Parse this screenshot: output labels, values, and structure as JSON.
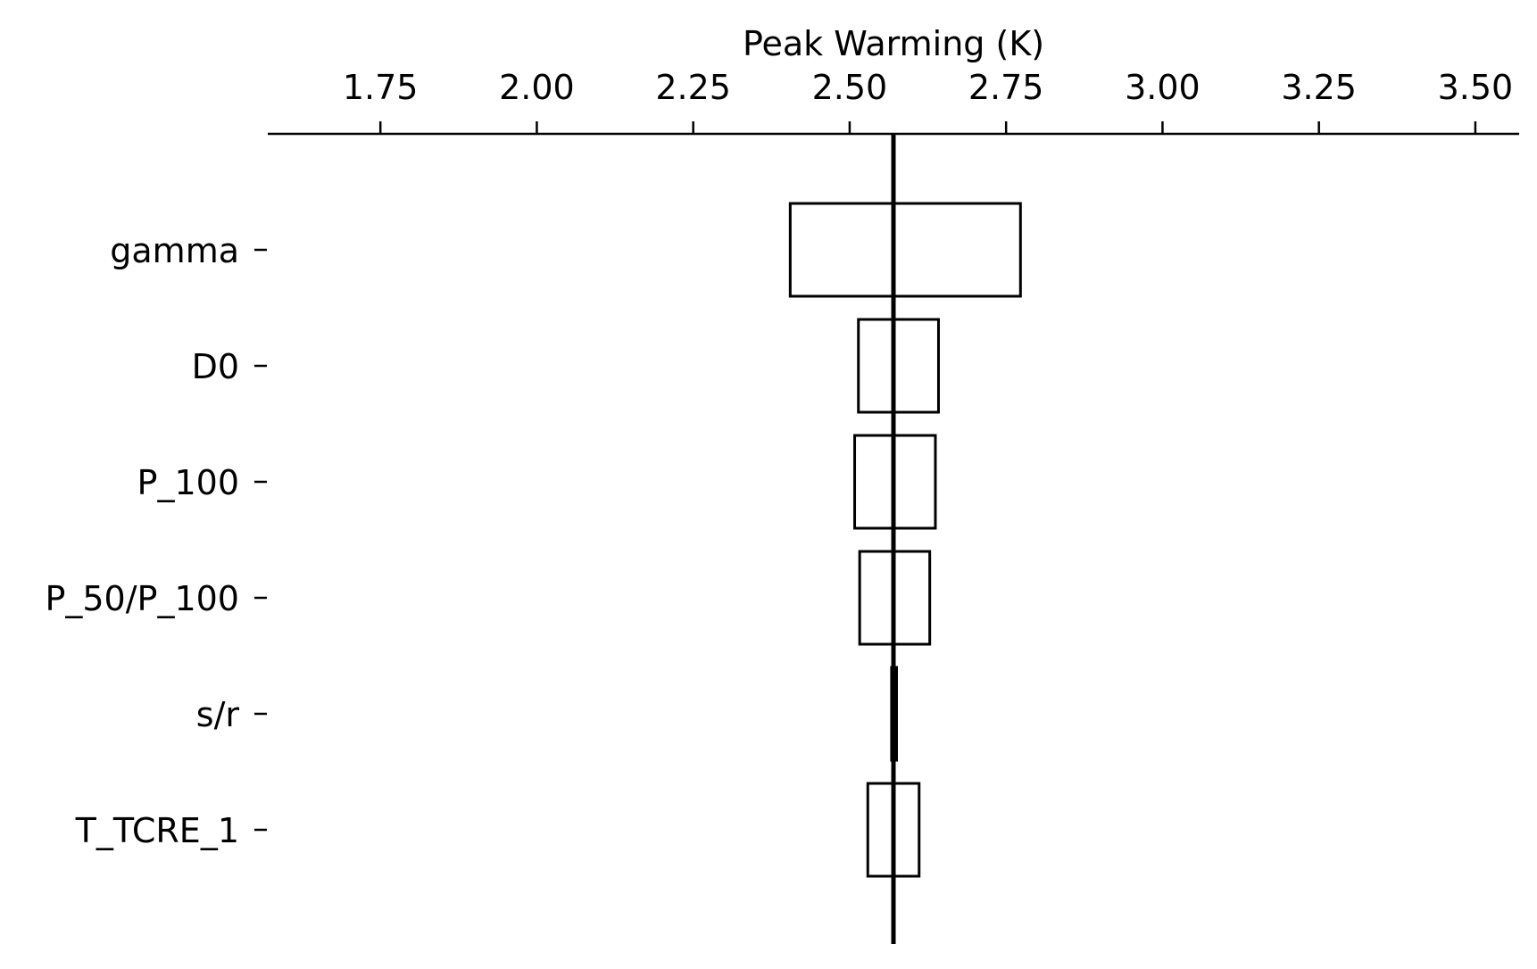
{
  "chart_data": {
    "type": "bar",
    "orientation": "horizontal",
    "xlabel": "Peak Warming (K)",
    "xlabel_position": "top",
    "xlim": [
      1.57,
      3.57
    ],
    "xticks": [
      1.75,
      2.0,
      2.25,
      2.5,
      2.75,
      3.0,
      3.25,
      3.5
    ],
    "xtick_labels": [
      "1.75",
      "2.00",
      "2.25",
      "2.50",
      "2.75",
      "3.00",
      "3.25",
      "3.50"
    ],
    "baseline": 2.57,
    "categories": [
      "gamma",
      "D0",
      "P_100",
      "P_50/P_100",
      "s/r",
      "T_TCRE_1"
    ],
    "series": [
      {
        "values": [
          [
            2.405,
            2.773
          ],
          [
            2.514,
            2.642
          ],
          [
            2.508,
            2.637
          ],
          [
            2.516,
            2.628
          ],
          [
            2.567,
            2.575
          ],
          [
            2.529,
            2.611
          ]
        ]
      }
    ],
    "grid": false,
    "legend": "none"
  }
}
